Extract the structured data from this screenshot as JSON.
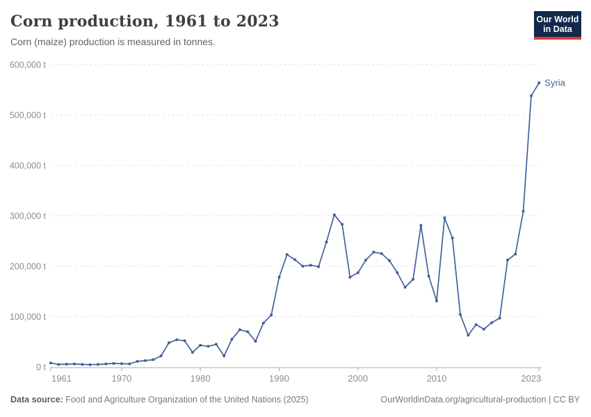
{
  "header": {
    "title": "Corn production, 1961 to 2023",
    "subtitle": "Corn (maize) production is measured in tonnes.",
    "logo": {
      "line1": "Our World",
      "line2": "in Data",
      "bg_color": "#12294b",
      "accent_color": "#d93b36"
    }
  },
  "chart_data": {
    "type": "line",
    "title": "Corn production, 1961 to 2023",
    "unit": "tonnes",
    "xlabel": "",
    "ylabel": "",
    "xlim": [
      1961,
      2023
    ],
    "ylim": [
      0,
      600000
    ],
    "grid": "horizontal-dashed",
    "legend_position": "end-of-line",
    "x_ticks": [
      1961,
      1970,
      1980,
      1990,
      2000,
      2010,
      2023
    ],
    "y_ticks": [
      0,
      100000,
      200000,
      300000,
      400000,
      500000,
      600000
    ],
    "y_tick_labels": [
      "0 t",
      "100,000 t",
      "200,000 t",
      "300,000 t",
      "400,000 t",
      "500,000 t",
      "600,000 t"
    ],
    "series": [
      {
        "name": "Syria",
        "color": "#41609b",
        "x": [
          1961,
          1962,
          1963,
          1964,
          1965,
          1966,
          1967,
          1968,
          1969,
          1970,
          1971,
          1972,
          1973,
          1974,
          1975,
          1976,
          1977,
          1978,
          1979,
          1980,
          1981,
          1982,
          1983,
          1984,
          1985,
          1986,
          1987,
          1988,
          1989,
          1990,
          1991,
          1992,
          1993,
          1994,
          1995,
          1996,
          1997,
          1998,
          1999,
          2000,
          2001,
          2002,
          2003,
          2004,
          2005,
          2006,
          2007,
          2008,
          2009,
          2010,
          2011,
          2012,
          2013,
          2014,
          2015,
          2016,
          2017,
          2018,
          2019,
          2020,
          2021,
          2022,
          2023
        ],
        "values": [
          8000,
          5000,
          5500,
          6000,
          5000,
          4500,
          5000,
          6000,
          7000,
          6500,
          6000,
          11000,
          12500,
          14500,
          22000,
          48000,
          54000,
          52000,
          29000,
          43000,
          41000,
          45000,
          22000,
          55000,
          74000,
          70000,
          51000,
          87000,
          103000,
          178000,
          223000,
          213000,
          200000,
          202000,
          199000,
          248000,
          302000,
          283000,
          178000,
          187000,
          212000,
          228000,
          225000,
          211000,
          187000,
          158000,
          174000,
          281000,
          180000,
          131000,
          296000,
          256000,
          104000,
          63000,
          84000,
          75000,
          88000,
          97000,
          212000,
          224000,
          309000,
          538000,
          564000
        ]
      }
    ]
  },
  "footer": {
    "source_label": "Data source:",
    "source_text": " Food and Agriculture Organization of the United Nations (2025)",
    "link_text": "OurWorldinData.org/agricultural-production | CC BY"
  }
}
